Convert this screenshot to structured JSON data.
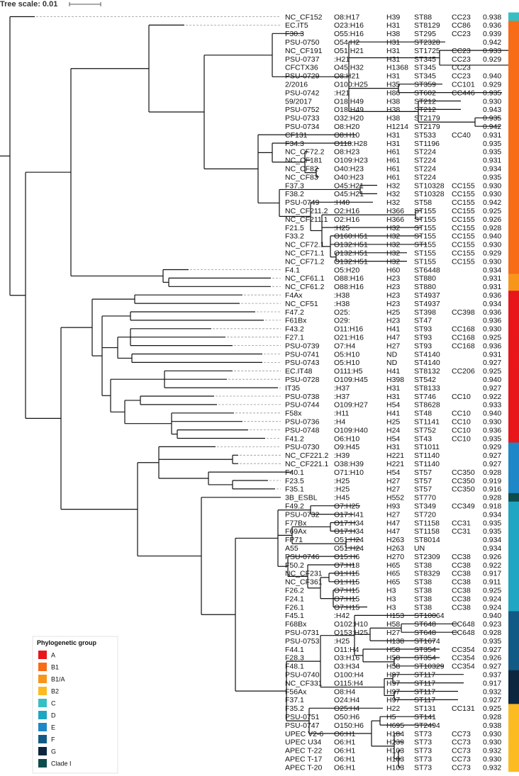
{
  "scale": {
    "label": "Tree scale: 0.01"
  },
  "legend": {
    "title": "Phylogenetic group",
    "items": [
      {
        "label": "A",
        "color": "#e8151b"
      },
      {
        "label": "B1",
        "color": "#f86b17"
      },
      {
        "label": "B1/A",
        "color": "#f8961a"
      },
      {
        "label": "B2",
        "color": "#fbbb21"
      },
      {
        "label": "C",
        "color": "#37bfc3"
      },
      {
        "label": "D",
        "color": "#1fa6c2"
      },
      {
        "label": "E",
        "color": "#1d87c8"
      },
      {
        "label": "F",
        "color": "#125a86"
      },
      {
        "label": "G",
        "color": "#0c2640"
      },
      {
        "label": "Clade I",
        "color": "#0c4c4d"
      }
    ]
  },
  "strains": [
    {
      "name": "NC_CF152",
      "serotype": "O8:H17",
      "fimH": "H39",
      "st": "ST88",
      "cc": "CC23",
      "sim": "0.938",
      "group": "C"
    },
    {
      "name": "EC.IT5",
      "serotype": "O23:H16",
      "fimH": "H31",
      "st": "ST8129",
      "cc": "CC86",
      "sim": "0.936",
      "group": "B1"
    },
    {
      "name": "F30.3",
      "serotype": "O55:H16",
      "fimH": "H38",
      "st": "ST295",
      "cc": "CC23",
      "sim": "0.939",
      "group": "B1"
    },
    {
      "name": "PSU-0750",
      "serotype": "O54:H2",
      "fimH": "H31",
      "st": "ST2328",
      "cc": "",
      "sim": "0.942",
      "group": "B1"
    },
    {
      "name": "NC_CF191",
      "serotype": "O51:H21",
      "fimH": "H31",
      "st": "ST1725",
      "cc": "CC23",
      "sim": "0.933",
      "group": "B1"
    },
    {
      "name": "PSU-0737",
      "serotype": ":H21",
      "fimH": "H31",
      "st": "ST345",
      "cc": "CC23",
      "sim": "0.929",
      "group": "B1"
    },
    {
      "name": "CFCTX36",
      "serotype": "O45:H32",
      "fimH": "H1368",
      "st": "ST345",
      "cc": "CC23",
      "sim": "",
      "group": "B1"
    },
    {
      "name": "PSU-0729",
      "serotype": "O8:H21",
      "fimH": "H31",
      "st": "ST345",
      "cc": "CC23",
      "sim": "0.940",
      "group": "B1"
    },
    {
      "name": "2/2016",
      "serotype": "O100:H25",
      "fimH": "H35",
      "st": "ST359",
      "cc": "CC101",
      "sim": "0.929",
      "group": "B1"
    },
    {
      "name": "PSU-0742",
      "serotype": ":H21",
      "fimH": "H86",
      "st": "ST602",
      "cc": "CC446",
      "sim": "0.935",
      "group": "B1"
    },
    {
      "name": "59/2017",
      "serotype": "O18:H49",
      "fimH": "H38",
      "st": "ST212",
      "cc": "",
      "sim": "0.930",
      "group": "B1"
    },
    {
      "name": "PSU-0752",
      "serotype": "O18:H49",
      "fimH": "H38",
      "st": "ST212",
      "cc": "",
      "sim": "0.943",
      "group": "B1"
    },
    {
      "name": "PSU-0733",
      "serotype": "O32:H20",
      "fimH": "H38",
      "st": "ST2179",
      "cc": "",
      "sim": "0.935",
      "group": "B1"
    },
    {
      "name": "PSU-0734",
      "serotype": "O8:H20",
      "fimH": "H1214",
      "st": "ST2179",
      "cc": "",
      "sim": "0.942",
      "group": "B1"
    },
    {
      "name": "CF131",
      "serotype": "O8:H10",
      "fimH": "H31",
      "st": "ST533",
      "cc": "CC40",
      "sim": "0.931",
      "group": "B1"
    },
    {
      "name": "F34.3",
      "serotype": "O118:H28",
      "fimH": "H31",
      "st": "ST1196",
      "cc": "",
      "sim": "0.935",
      "group": "B1"
    },
    {
      "name": "NC_CF72.2",
      "serotype": "O8:H23",
      "fimH": "H61",
      "st": "ST224",
      "cc": "",
      "sim": "0.935",
      "group": "B1"
    },
    {
      "name": "NC_CF181",
      "serotype": "O109:H23",
      "fimH": "H61",
      "st": "ST224",
      "cc": "",
      "sim": "0.931",
      "group": "B1"
    },
    {
      "name": "NC_CF82",
      "serotype": "O40:H23",
      "fimH": "H61",
      "st": "ST224",
      "cc": "",
      "sim": "0.934",
      "group": "B1"
    },
    {
      "name": "NC_CF83",
      "serotype": "O40:H23",
      "fimH": "H61",
      "st": "ST224",
      "cc": "",
      "sim": "0.935",
      "group": "B1"
    },
    {
      "name": "F37.3",
      "serotype": "O45:H21",
      "fimH": "H32",
      "st": "ST10328",
      "cc": "CC155",
      "sim": "0.930",
      "group": "B1"
    },
    {
      "name": "F38.2",
      "serotype": "O45:H21",
      "fimH": "H32",
      "st": "ST10328",
      "cc": "CC155",
      "sim": "0.930",
      "group": "B1"
    },
    {
      "name": "PSU-0749",
      "serotype": ":H40",
      "fimH": "H32",
      "st": "ST58",
      "cc": "CC155",
      "sim": "0.942",
      "group": "B1"
    },
    {
      "name": "NC_CF211.2",
      "serotype": "O2:H16",
      "fimH": "H366",
      "st": "ST155",
      "cc": "CC155",
      "sim": "0.925",
      "group": "B1"
    },
    {
      "name": "NC_CF211.1",
      "serotype": "O2:H16",
      "fimH": "H366",
      "st": "ST155",
      "cc": "CC155",
      "sim": "0.926",
      "group": "B1"
    },
    {
      "name": "F21.5",
      "serotype": ":H25",
      "fimH": "H32",
      "st": "ST155",
      "cc": "CC155",
      "sim": "0.928",
      "group": "B1"
    },
    {
      "name": "F33.2",
      "serotype": "O160:H51",
      "fimH": "H32",
      "st": "ST155",
      "cc": "CC155",
      "sim": "0.940",
      "group": "B1"
    },
    {
      "name": "NC_CF72.1",
      "serotype": "O132:H51",
      "fimH": "H32",
      "st": "ST155",
      "cc": "CC155",
      "sim": "0.930",
      "group": "B1"
    },
    {
      "name": "NC_CF71.1",
      "serotype": "O132:H51",
      "fimH": "H32",
      "st": "ST155",
      "cc": "CC155",
      "sim": "0.929",
      "group": "B1"
    },
    {
      "name": "NC_CF71.2",
      "serotype": "O132:H51",
      "fimH": "H32",
      "st": "ST155",
      "cc": "CC155",
      "sim": "0.930",
      "group": "B1"
    },
    {
      "name": "F4.1",
      "serotype": "O5:H20",
      "fimH": "H60",
      "st": "ST6448",
      "cc": "",
      "sim": "0.934",
      "group": "B1"
    },
    {
      "name": "NC_CF61.1",
      "serotype": "O88:H16",
      "fimH": "H23",
      "st": "ST880",
      "cc": "",
      "sim": "0.931",
      "group": "B1/A"
    },
    {
      "name": "NC_CF61.2",
      "serotype": "O88:H16",
      "fimH": "H23",
      "st": "ST880",
      "cc": "",
      "sim": "0.931",
      "group": "B1/A"
    },
    {
      "name": "F4Ax",
      "serotype": ":H38",
      "fimH": "H23",
      "st": "ST4937",
      "cc": "",
      "sim": "0.936",
      "group": "A"
    },
    {
      "name": "NC_CF51",
      "serotype": ":H38",
      "fimH": "H23",
      "st": "ST4937",
      "cc": "",
      "sim": "0.934",
      "group": "A"
    },
    {
      "name": "F47.2",
      "serotype": "O25:",
      "fimH": "H25",
      "st": "ST398",
      "cc": "CC398",
      "sim": "0.936",
      "group": "A"
    },
    {
      "name": "F61Bx",
      "serotype": "O29:",
      "fimH": "H23",
      "st": "ST47",
      "cc": "",
      "sim": "0.936",
      "group": "A"
    },
    {
      "name": "F43.2",
      "serotype": "O11:H16",
      "fimH": "H41",
      "st": "ST93",
      "cc": "CC168",
      "sim": "0.930",
      "group": "A"
    },
    {
      "name": "F27.1",
      "serotype": "O21:H16",
      "fimH": "H47",
      "st": "ST93",
      "cc": "CC168",
      "sim": "0.925",
      "group": "A"
    },
    {
      "name": "PSU-0739",
      "serotype": "O7:H4",
      "fimH": "H27",
      "st": "ST93",
      "cc": "CC168",
      "sim": "0.936",
      "group": "A"
    },
    {
      "name": "PSU-0741",
      "serotype": "O5:H10",
      "fimH": "ND",
      "st": "ST4140",
      "cc": "",
      "sim": "0.931",
      "group": "A"
    },
    {
      "name": "PSU-0743",
      "serotype": "O5:H10",
      "fimH": "ND",
      "st": "ST4140",
      "cc": "",
      "sim": "0.927",
      "group": "A"
    },
    {
      "name": "EC.IT48",
      "serotype": "O111:H5",
      "fimH": "H41",
      "st": "ST8132",
      "cc": "CC206",
      "sim": "0.925",
      "group": "A"
    },
    {
      "name": "PSU-0728",
      "serotype": "O109:H45",
      "fimH": "H398",
      "st": "ST542",
      "cc": "",
      "sim": "0.940",
      "group": "A"
    },
    {
      "name": "IT35",
      "serotype": ":H37",
      "fimH": "H31",
      "st": "ST8133",
      "cc": "",
      "sim": "0.927",
      "group": "A"
    },
    {
      "name": "PSU-0738",
      "serotype": ":H37",
      "fimH": "H31",
      "st": "ST746",
      "cc": "CC10",
      "sim": "0.922",
      "group": "A"
    },
    {
      "name": "PSU-0744",
      "serotype": "O109:H27",
      "fimH": "H54",
      "st": "ST8628",
      "cc": "",
      "sim": "0.933",
      "group": "A"
    },
    {
      "name": "F58x",
      "serotype": ":H11",
      "fimH": "H41",
      "st": "ST48",
      "cc": "CC10",
      "sim": "0.940",
      "group": "A"
    },
    {
      "name": "PSU-0736",
      "serotype": ":H4",
      "fimH": "H25",
      "st": "ST1141",
      "cc": "CC10",
      "sim": "0.930",
      "group": "A"
    },
    {
      "name": "PSU-0748",
      "serotype": "O109:H40",
      "fimH": "H24",
      "st": "ST752",
      "cc": "CC10",
      "sim": "0.936",
      "group": "A"
    },
    {
      "name": "F41.2",
      "serotype": "O6:H10",
      "fimH": "H54",
      "st": "ST43",
      "cc": "CC10",
      "sim": "0.935",
      "group": "A"
    },
    {
      "name": "PSU-0730",
      "serotype": "O9:H45",
      "fimH": "H31",
      "st": "ST1011",
      "cc": "",
      "sim": "0.929",
      "group": "E"
    },
    {
      "name": "NC_CF221.2",
      "serotype": ":H39",
      "fimH": "H221",
      "st": "ST1140",
      "cc": "",
      "sim": "0.927",
      "group": "E"
    },
    {
      "name": "NC_CF221.1",
      "serotype": "O38:H39",
      "fimH": "H221",
      "st": "ST1140",
      "cc": "",
      "sim": "0.927",
      "group": "E"
    },
    {
      "name": "F40.1",
      "serotype": "O71:H10",
      "fimH": "H54",
      "st": "ST57",
      "cc": "CC350",
      "sim": "0.928",
      "group": "E"
    },
    {
      "name": "F23.5",
      "serotype": ":H25",
      "fimH": "H27",
      "st": "ST57",
      "cc": "CC350",
      "sim": "0.919",
      "group": "E"
    },
    {
      "name": "F35.1",
      "serotype": ":H25",
      "fimH": "H27",
      "st": "ST57",
      "cc": "CC350",
      "sim": "0.916",
      "group": "E"
    },
    {
      "name": "3B_ESBL",
      "serotype": ":H45",
      "fimH": "H552",
      "st": "ST770",
      "cc": "",
      "sim": "0.928",
      "group": "Clade I"
    },
    {
      "name": "F49.2",
      "serotype": "O7:H25",
      "fimH": "H93",
      "st": "ST349",
      "cc": "CC349",
      "sim": "0.918",
      "group": "D"
    },
    {
      "name": "PSU-0732",
      "serotype": "O17:H41",
      "fimH": "H27",
      "st": "ST720",
      "cc": "",
      "sim": "0.934",
      "group": "D"
    },
    {
      "name": "F77Bx",
      "serotype": "O17:H34",
      "fimH": "H47",
      "st": "ST1158",
      "cc": "CC31",
      "sim": "0.935",
      "group": "D"
    },
    {
      "name": "F69Ax",
      "serotype": "O17:H34",
      "fimH": "H47",
      "st": "ST1158",
      "cc": "CC31",
      "sim": "0.935",
      "group": "D"
    },
    {
      "name": "FP71",
      "serotype": "O51:H24",
      "fimH": "H263",
      "st": "ST8014",
      "cc": "",
      "sim": "0.934",
      "group": "D"
    },
    {
      "name": "A55",
      "serotype": "O51:H24",
      "fimH": "H263",
      "st": "UN",
      "cc": "",
      "sim": "0.934",
      "group": "D"
    },
    {
      "name": "PSU-0746",
      "serotype": "O15:H6",
      "fimH": "H270",
      "st": "ST2309",
      "cc": "CC38",
      "sim": "0.926",
      "group": "D"
    },
    {
      "name": "F50.2",
      "serotype": "O7:H18",
      "fimH": "H65",
      "st": "ST38",
      "cc": "CC38",
      "sim": "0.922",
      "group": "D"
    },
    {
      "name": "NC_CF231",
      "serotype": "O1:H15",
      "fimH": "H65",
      "st": "ST8329",
      "cc": "CC38",
      "sim": "0.917",
      "group": "D"
    },
    {
      "name": "NC_CF361",
      "serotype": "O1:H15",
      "fimH": "H65",
      "st": "ST38",
      "cc": "CC38",
      "sim": "0.911",
      "group": "D"
    },
    {
      "name": "F26.2",
      "serotype": "O7:H15",
      "fimH": "H3",
      "st": "ST38",
      "cc": "CC38",
      "sim": "0.925",
      "group": "D"
    },
    {
      "name": "F24.1",
      "serotype": "O7:H15",
      "fimH": "H3",
      "st": "ST38",
      "cc": "CC38",
      "sim": "0.924",
      "group": "D"
    },
    {
      "name": "F26.1",
      "serotype": "O7:H15",
      "fimH": "H3",
      "st": "ST38",
      "cc": "CC38",
      "sim": "0.924",
      "group": "D"
    },
    {
      "name": "F45.1",
      "serotype": ":H42",
      "fimH": "H153",
      "st": "ST10064",
      "cc": "",
      "sim": "0.940",
      "group": "F"
    },
    {
      "name": "F68Bx",
      "serotype": "O102:H10",
      "fimH": "H58",
      "st": "ST648",
      "cc": "CC648",
      "sim": "0.923",
      "group": "F"
    },
    {
      "name": "PSU-0731",
      "serotype": "O153:H25",
      "fimH": "H27",
      "st": "ST648",
      "cc": "CC648",
      "sim": "0.928",
      "group": "F"
    },
    {
      "name": "PSU-0753",
      "serotype": ":H25",
      "fimH": "H138",
      "st": "ST1674",
      "cc": "",
      "sim": "0.935",
      "group": "F"
    },
    {
      "name": "F44.1",
      "serotype": "O11:H4",
      "fimH": "H58",
      "st": "ST354",
      "cc": "CC354",
      "sim": "0.927",
      "group": "F"
    },
    {
      "name": "F28.3",
      "serotype": "O3:H16",
      "fimH": "H58",
      "st": "ST354",
      "cc": "CC354",
      "sim": "0.926",
      "group": "F"
    },
    {
      "name": "F48.1",
      "serotype": "O3:H34",
      "fimH": "H58",
      "st": "ST10329",
      "cc": "CC354",
      "sim": "0.927",
      "group": "F"
    },
    {
      "name": "PSU-0740",
      "serotype": "O100:H4",
      "fimH": "H97",
      "st": "ST117",
      "cc": "",
      "sim": "0.937",
      "group": "G"
    },
    {
      "name": "NC_CF331",
      "serotype": "O115:H4",
      "fimH": "H97",
      "st": "ST117",
      "cc": "",
      "sim": "0.917",
      "group": "G"
    },
    {
      "name": "F56Ax",
      "serotype": "O8:H4",
      "fimH": "H97",
      "st": "ST117",
      "cc": "",
      "sim": "0.932",
      "group": "G"
    },
    {
      "name": "F37.1",
      "serotype": "O24:H4",
      "fimH": "H97",
      "st": "ST117",
      "cc": "",
      "sim": "0.927",
      "group": "G"
    },
    {
      "name": "F35.2",
      "serotype": "O25:H4",
      "fimH": "H22",
      "st": "ST131",
      "cc": "CC131",
      "sim": "0.925",
      "group": "B2"
    },
    {
      "name": "PSU-0751",
      "serotype": "O50:H6",
      "fimH": "H5",
      "st": "ST141",
      "cc": "",
      "sim": "0.928",
      "group": "B2"
    },
    {
      "name": "PSU-0747",
      "serotype": "O150:H6",
      "fimH": "H695",
      "st": "ST2494",
      "cc": "",
      "sim": "0.938",
      "group": "B2"
    },
    {
      "name": "UPEC V2-6",
      "serotype": "O6:H1",
      "fimH": "H184",
      "st": "ST73",
      "cc": "CC73",
      "sim": "0.930",
      "group": "B2"
    },
    {
      "name": "UPEC U34",
      "serotype": "O6:H1",
      "fimH": "H239",
      "st": "ST73",
      "cc": "CC73",
      "sim": "0.930",
      "group": "B2"
    },
    {
      "name": "APEC T-22",
      "serotype": "O6:H1",
      "fimH": "H103",
      "st": "ST73",
      "cc": "CC73",
      "sim": "0.932",
      "group": "B2"
    },
    {
      "name": "APEC T-17",
      "serotype": "O6:H1",
      "fimH": "H103",
      "st": "ST73",
      "cc": "CC73",
      "sim": "0.930",
      "group": "B2"
    },
    {
      "name": "APEC T-20",
      "serotype": "O6:H1",
      "fimH": "H103",
      "st": "ST73",
      "cc": "CC73",
      "sim": "0.932",
      "group": "B2"
    }
  ]
}
